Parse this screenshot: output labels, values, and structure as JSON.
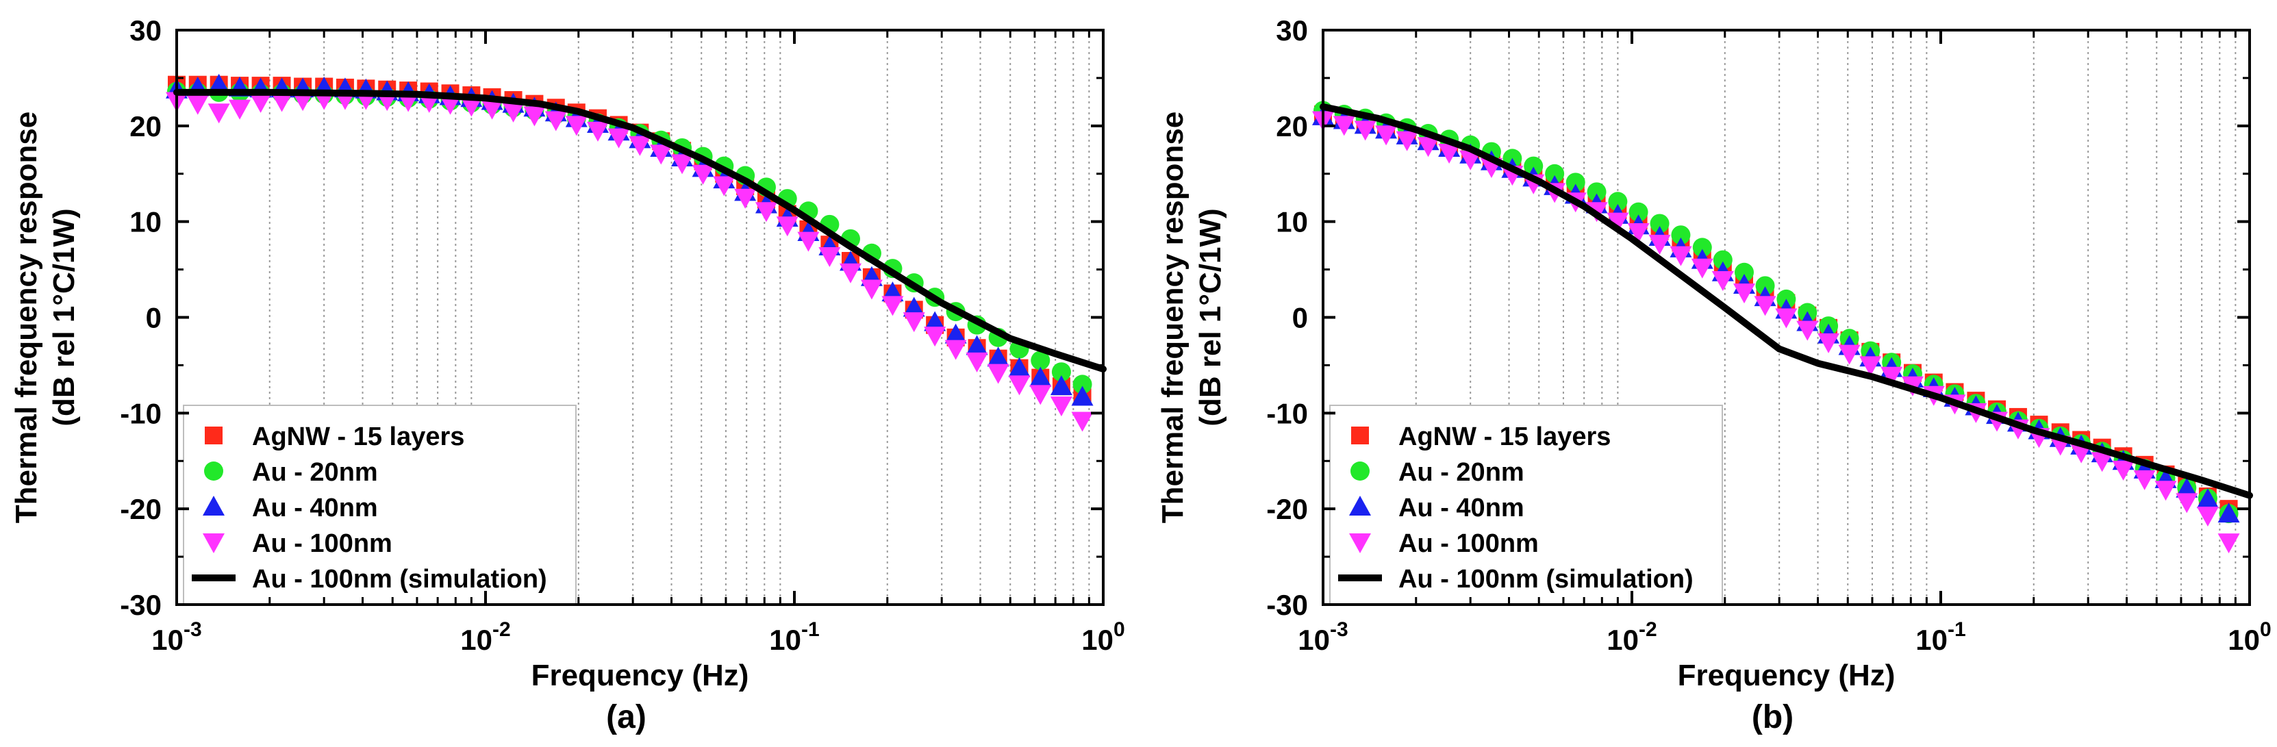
{
  "chart_data": [
    {
      "type": "scatter",
      "panel_label": "(a)",
      "xlabel": "Frequency (Hz)",
      "ylabel_line1": "Thermal frequency response",
      "ylabel_line2": "(dB rel 1°C/1W)",
      "xscale": "log",
      "xlim": [
        0.001,
        1
      ],
      "ylim": [
        -30,
        30
      ],
      "xticks": [
        {
          "value": 0.001,
          "base": "10",
          "exp": "-3"
        },
        {
          "value": 0.01,
          "base": "10",
          "exp": "-2"
        },
        {
          "value": 0.1,
          "base": "10",
          "exp": "-1"
        },
        {
          "value": 1,
          "base": "10",
          "exp": "0"
        }
      ],
      "yticks": [
        30,
        20,
        10,
        0,
        -10,
        -20,
        -30
      ],
      "grid": "vertical dotted minor gridlines",
      "legend": "bottom-left",
      "series": [
        {
          "name": "AgNW - 15 layers",
          "marker": "square",
          "color": "#ff2a1a",
          "x": [
            0.001,
            0.00117,
            0.00137,
            0.0016,
            0.00187,
            0.00219,
            0.00256,
            0.003,
            0.00351,
            0.0041,
            0.0048,
            0.00562,
            0.00657,
            0.00769,
            0.009,
            0.0105,
            0.0123,
            0.0144,
            0.0169,
            0.0197,
            0.0231,
            0.027,
            0.0316,
            0.037,
            0.0433,
            0.0506,
            0.0592,
            0.0693,
            0.0811,
            0.0949,
            0.111,
            0.13,
            0.152,
            0.178,
            0.208,
            0.244,
            0.285,
            0.333,
            0.39,
            0.457,
            0.535,
            0.626,
            0.732,
            0.856
          ],
          "y": [
            24.3,
            24.3,
            24.3,
            24.2,
            24.2,
            24.2,
            24.1,
            24.1,
            24.0,
            23.9,
            23.8,
            23.7,
            23.6,
            23.4,
            23.2,
            23.0,
            22.7,
            22.3,
            21.9,
            21.4,
            20.8,
            20.1,
            19.3,
            18.4,
            17.4,
            16.3,
            15.0,
            13.7,
            12.3,
            10.8,
            9.2,
            7.6,
            5.9,
            4.2,
            2.5,
            0.8,
            -0.8,
            -2.1,
            -3.2,
            -4.3,
            -5.3,
            -6.3,
            -7.2,
            -8.0
          ]
        },
        {
          "name": "Au - 20nm",
          "marker": "circle",
          "color": "#22e82a",
          "x": [
            0.001,
            0.00117,
            0.00137,
            0.0016,
            0.00187,
            0.00219,
            0.00256,
            0.003,
            0.00351,
            0.0041,
            0.0048,
            0.00562,
            0.00657,
            0.00769,
            0.009,
            0.0105,
            0.0123,
            0.0144,
            0.0169,
            0.0197,
            0.0231,
            0.027,
            0.0316,
            0.037,
            0.0433,
            0.0506,
            0.0592,
            0.0693,
            0.0811,
            0.0949,
            0.111,
            0.13,
            0.152,
            0.178,
            0.208,
            0.244,
            0.285,
            0.333,
            0.39,
            0.457,
            0.535,
            0.626,
            0.732,
            0.856
          ],
          "y": [
            23.6,
            23.5,
            23.5,
            23.5,
            23.4,
            23.4,
            23.3,
            23.3,
            23.2,
            23.1,
            23.0,
            22.9,
            22.8,
            22.6,
            22.4,
            22.2,
            21.9,
            21.6,
            21.2,
            20.8,
            20.3,
            19.8,
            19.2,
            18.5,
            17.7,
            16.8,
            15.8,
            14.8,
            13.6,
            12.4,
            11.1,
            9.7,
            8.2,
            6.7,
            5.1,
            3.6,
            2.1,
            0.6,
            -0.8,
            -2.1,
            -3.3,
            -4.5,
            -5.7,
            -7.0
          ]
        },
        {
          "name": "Au - 40nm",
          "marker": "triangle-up",
          "color": "#1a22f0",
          "x": [
            0.001,
            0.00117,
            0.00137,
            0.0016,
            0.00187,
            0.00219,
            0.00256,
            0.003,
            0.00351,
            0.0041,
            0.0048,
            0.00562,
            0.00657,
            0.00769,
            0.009,
            0.0105,
            0.0123,
            0.0144,
            0.0169,
            0.0197,
            0.0231,
            0.027,
            0.0316,
            0.037,
            0.0433,
            0.0506,
            0.0592,
            0.0693,
            0.0811,
            0.0949,
            0.111,
            0.13,
            0.152,
            0.178,
            0.208,
            0.244,
            0.285,
            0.333,
            0.39,
            0.457,
            0.535,
            0.626,
            0.732,
            0.856
          ],
          "y": [
            23.8,
            24.0,
            24.3,
            24.0,
            23.9,
            23.9,
            23.9,
            24.0,
            23.9,
            23.8,
            23.6,
            23.5,
            23.3,
            23.1,
            22.9,
            22.6,
            22.3,
            21.9,
            21.4,
            20.8,
            20.2,
            19.4,
            18.6,
            17.7,
            16.7,
            15.6,
            14.4,
            13.1,
            11.8,
            10.4,
            8.9,
            7.4,
            5.8,
            4.2,
            2.6,
            1.0,
            -0.5,
            -1.8,
            -3.0,
            -4.2,
            -5.3,
            -6.3,
            -7.2,
            -8.3
          ]
        },
        {
          "name": "Au - 100nm",
          "marker": "triangle-down",
          "color": "#ff33ff",
          "x": [
            0.001,
            0.00117,
            0.00137,
            0.0016,
            0.00187,
            0.00219,
            0.00256,
            0.003,
            0.00351,
            0.0041,
            0.0048,
            0.00562,
            0.00657,
            0.00769,
            0.009,
            0.0105,
            0.0123,
            0.0144,
            0.0169,
            0.0197,
            0.0231,
            0.027,
            0.0316,
            0.037,
            0.0433,
            0.0506,
            0.0592,
            0.0693,
            0.0811,
            0.0949,
            0.111,
            0.13,
            0.152,
            0.178,
            0.208,
            0.244,
            0.285,
            0.333,
            0.39,
            0.457,
            0.535,
            0.626,
            0.732,
            0.856
          ],
          "y": [
            22.6,
            22.3,
            21.4,
            21.8,
            22.5,
            22.6,
            22.7,
            22.8,
            22.8,
            22.8,
            22.7,
            22.6,
            22.5,
            22.3,
            22.1,
            21.8,
            21.5,
            21.1,
            20.6,
            20.1,
            19.5,
            18.8,
            18.0,
            17.1,
            16.1,
            15.0,
            13.8,
            12.5,
            11.1,
            9.6,
            8.0,
            6.4,
            4.7,
            3.0,
            1.3,
            -0.4,
            -1.9,
            -3.3,
            -4.6,
            -5.8,
            -7.0,
            -8.0,
            -9.2,
            -10.8
          ]
        },
        {
          "name": "Au - 100nm (simulation)",
          "marker": "line",
          "color": "#000000",
          "x": [
            0.001,
            0.002,
            0.004,
            0.006,
            0.01,
            0.015,
            0.02,
            0.03,
            0.05,
            0.07,
            0.1,
            0.15,
            0.2,
            0.3,
            0.5,
            0.7,
            1.0
          ],
          "y": [
            23.5,
            23.5,
            23.4,
            23.3,
            22.9,
            22.3,
            21.5,
            19.8,
            16.6,
            14.2,
            11.2,
            7.5,
            5.0,
            1.5,
            -2.2,
            -3.8,
            -5.4
          ]
        }
      ]
    },
    {
      "type": "scatter",
      "panel_label": "(b)",
      "xlabel": "Frequency (Hz)",
      "ylabel_line1": "Thermal frequency response",
      "ylabel_line2": "(dB rel 1°C/1W)",
      "xscale": "log",
      "xlim": [
        0.001,
        1
      ],
      "ylim": [
        -30,
        30
      ],
      "xticks": [
        {
          "value": 0.001,
          "base": "10",
          "exp": "-3"
        },
        {
          "value": 0.01,
          "base": "10",
          "exp": "-2"
        },
        {
          "value": 0.1,
          "base": "10",
          "exp": "-1"
        },
        {
          "value": 1,
          "base": "10",
          "exp": "0"
        }
      ],
      "yticks": [
        30,
        20,
        10,
        0,
        -10,
        -20,
        -30
      ],
      "grid": "vertical dotted minor gridlines",
      "legend": "bottom-left",
      "series": [
        {
          "name": "AgNW - 15 layers",
          "marker": "square",
          "color": "#ff2a1a",
          "x": [
            0.001,
            0.00117,
            0.00137,
            0.0016,
            0.00187,
            0.00219,
            0.00256,
            0.003,
            0.00351,
            0.0041,
            0.0048,
            0.00562,
            0.00657,
            0.00769,
            0.009,
            0.0105,
            0.0123,
            0.0144,
            0.0169,
            0.0197,
            0.0231,
            0.027,
            0.0316,
            0.037,
            0.0433,
            0.0506,
            0.0592,
            0.0693,
            0.0811,
            0.0949,
            0.111,
            0.13,
            0.152,
            0.178,
            0.208,
            0.244,
            0.285,
            0.333,
            0.39,
            0.457,
            0.535,
            0.626,
            0.732,
            0.856
          ],
          "y": [
            21.2,
            20.8,
            20.3,
            19.8,
            19.2,
            18.6,
            18.0,
            17.3,
            16.6,
            15.8,
            15.0,
            14.1,
            13.2,
            12.2,
            11.2,
            10.1,
            9.0,
            7.8,
            6.6,
            5.4,
            4.1,
            2.8,
            1.5,
            0.2,
            -1.1,
            -2.4,
            -3.6,
            -4.7,
            -5.8,
            -6.8,
            -7.8,
            -8.7,
            -9.6,
            -10.4,
            -11.2,
            -12.0,
            -12.8,
            -13.6,
            -14.5,
            -15.4,
            -16.4,
            -17.5,
            -18.7,
            -20.0
          ]
        },
        {
          "name": "Au - 20nm",
          "marker": "circle",
          "color": "#22e82a",
          "x": [
            0.001,
            0.00117,
            0.00137,
            0.0016,
            0.00187,
            0.00219,
            0.00256,
            0.003,
            0.00351,
            0.0041,
            0.0048,
            0.00562,
            0.00657,
            0.00769,
            0.009,
            0.0105,
            0.0123,
            0.0144,
            0.0169,
            0.0197,
            0.0231,
            0.027,
            0.0316,
            0.037,
            0.0433,
            0.0506,
            0.0592,
            0.0693,
            0.0811,
            0.0949,
            0.111,
            0.13,
            0.152,
            0.178,
            0.208,
            0.244,
            0.285,
            0.333,
            0.39,
            0.457,
            0.535,
            0.626,
            0.732,
            0.856
          ],
          "y": [
            21.6,
            21.2,
            20.8,
            20.3,
            19.8,
            19.2,
            18.6,
            18.0,
            17.3,
            16.6,
            15.8,
            15.0,
            14.1,
            13.1,
            12.1,
            11.0,
            9.8,
            8.6,
            7.3,
            6.0,
            4.7,
            3.3,
            1.9,
            0.5,
            -0.9,
            -2.2,
            -3.5,
            -4.7,
            -5.9,
            -7.0,
            -8.0,
            -9.0,
            -9.9,
            -10.8,
            -11.6,
            -12.4,
            -13.2,
            -14.0,
            -14.9,
            -15.8,
            -16.8,
            -17.8,
            -18.9,
            -20.5
          ]
        },
        {
          "name": "Au - 40nm",
          "marker": "triangle-up",
          "color": "#1a22f0",
          "x": [
            0.001,
            0.00117,
            0.00137,
            0.0016,
            0.00187,
            0.00219,
            0.00256,
            0.003,
            0.00351,
            0.0041,
            0.0048,
            0.00562,
            0.00657,
            0.00769,
            0.009,
            0.0105,
            0.0123,
            0.0144,
            0.0169,
            0.0197,
            0.0231,
            0.027,
            0.0316,
            0.037,
            0.0433,
            0.0506,
            0.0592,
            0.0693,
            0.0811,
            0.0949,
            0.111,
            0.13,
            0.152,
            0.178,
            0.208,
            0.244,
            0.285,
            0.333,
            0.39,
            0.457,
            0.535,
            0.626,
            0.732,
            0.856
          ],
          "y": [
            21.0,
            20.6,
            20.1,
            19.6,
            19.0,
            18.4,
            17.7,
            17.0,
            16.3,
            15.5,
            14.6,
            13.7,
            12.8,
            11.8,
            10.7,
            9.6,
            8.4,
            7.2,
            6.0,
            4.7,
            3.4,
            2.1,
            0.8,
            -0.5,
            -1.8,
            -3.0,
            -4.2,
            -5.3,
            -6.4,
            -7.4,
            -8.4,
            -9.3,
            -10.2,
            -11.0,
            -11.8,
            -12.6,
            -13.4,
            -14.2,
            -15.0,
            -15.9,
            -16.9,
            -17.9,
            -19.0,
            -20.5
          ]
        },
        {
          "name": "Au - 100nm",
          "marker": "triangle-down",
          "color": "#ff33ff",
          "x": [
            0.001,
            0.00117,
            0.00137,
            0.0016,
            0.00187,
            0.00219,
            0.00256,
            0.003,
            0.00351,
            0.0041,
            0.0048,
            0.00562,
            0.00657,
            0.00769,
            0.009,
            0.0105,
            0.0123,
            0.0144,
            0.0169,
            0.0197,
            0.0231,
            0.027,
            0.0316,
            0.037,
            0.0433,
            0.0506,
            0.0592,
            0.0693,
            0.0811,
            0.0949,
            0.111,
            0.13,
            0.152,
            0.178,
            0.208,
            0.244,
            0.285,
            0.333,
            0.39,
            0.457,
            0.535,
            0.626,
            0.732,
            0.856
          ],
          "y": [
            20.6,
            20.1,
            19.6,
            19.1,
            18.5,
            17.9,
            17.2,
            16.5,
            15.7,
            14.9,
            14.0,
            13.1,
            12.1,
            11.1,
            10.0,
            8.9,
            7.7,
            6.5,
            5.2,
            3.9,
            2.6,
            1.3,
            0.0,
            -1.3,
            -2.6,
            -3.8,
            -5.0,
            -6.1,
            -7.1,
            -8.1,
            -9.0,
            -9.9,
            -10.8,
            -11.6,
            -12.5,
            -13.3,
            -14.1,
            -15.0,
            -15.9,
            -16.9,
            -18.0,
            -19.3,
            -20.7,
            -23.5
          ]
        },
        {
          "name": "Au - 100nm (simulation)",
          "marker": "line",
          "color": "#000000",
          "x": [
            0.001,
            0.0015,
            0.002,
            0.003,
            0.005,
            0.007,
            0.01,
            0.015,
            0.02,
            0.03,
            0.04,
            0.06,
            0.1,
            0.15,
            0.2,
            0.3,
            0.5,
            0.7,
            1.0
          ],
          "y": [
            22.0,
            20.8,
            19.6,
            17.6,
            14.2,
            11.6,
            8.2,
            4.0,
            1.0,
            -3.3,
            -4.8,
            -6.2,
            -8.4,
            -10.4,
            -11.8,
            -13.4,
            -15.6,
            -17.0,
            -18.6
          ]
        }
      ]
    }
  ]
}
